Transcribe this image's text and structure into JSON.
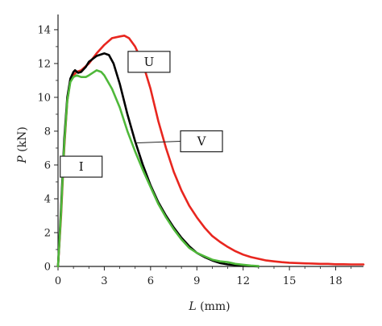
{
  "chart_data": {
    "type": "line",
    "xlabel_var": "L",
    "xlabel_unit": " (mm)",
    "ylabel_var": "P",
    "ylabel_unit": " (kN)",
    "xlim": [
      0,
      19.8
    ],
    "ylim": [
      0,
      14.9
    ],
    "xticks": [
      0,
      3,
      6,
      9,
      12,
      15,
      18
    ],
    "yticks": [
      0,
      2,
      4,
      6,
      8,
      10,
      12,
      14
    ],
    "grid": false,
    "legend": "none",
    "series": [
      {
        "color": "#e8261f",
        "x": [
          0,
          0.2,
          0.4,
          0.6,
          0.8,
          1.0,
          1.2,
          1.5,
          2.0,
          2.5,
          3.0,
          3.5,
          4.0,
          4.3,
          4.6,
          5.0,
          5.5,
          6.0,
          6.5,
          7.0,
          7.5,
          8.0,
          8.5,
          9.0,
          9.5,
          10.0,
          10.5,
          11.0,
          11.5,
          12.0,
          12.5,
          13.0,
          13.5,
          14.0,
          14.5,
          15.0,
          15.5,
          16.0,
          16.5,
          17.0,
          17.5,
          18.0,
          18.5,
          19.0,
          19.5,
          19.8
        ],
        "y": [
          0,
          3.0,
          7.0,
          9.8,
          11.0,
          11.3,
          11.5,
          11.6,
          12.0,
          12.6,
          13.1,
          13.5,
          13.6,
          13.65,
          13.5,
          13.0,
          12.0,
          10.5,
          8.6,
          7.0,
          5.6,
          4.5,
          3.6,
          2.9,
          2.3,
          1.8,
          1.45,
          1.15,
          0.9,
          0.7,
          0.55,
          0.45,
          0.35,
          0.3,
          0.25,
          0.22,
          0.2,
          0.18,
          0.17,
          0.15,
          0.15,
          0.13,
          0.13,
          0.12,
          0.12,
          0.12
        ]
      },
      {
        "color": "#000000",
        "x": [
          0,
          0.2,
          0.4,
          0.6,
          0.8,
          1.0,
          1.1,
          1.3,
          1.5,
          1.8,
          2.0,
          2.5,
          3.0,
          3.3,
          3.6,
          4.0,
          4.5,
          5.0,
          5.5,
          6.0,
          6.5,
          7.0,
          7.5,
          8.0,
          8.5,
          9.0,
          9.5,
          10.0,
          10.5,
          11.0,
          11.5,
          12.0,
          12.5,
          13.0
        ],
        "y": [
          0,
          3.5,
          7.5,
          10.0,
          11.1,
          11.5,
          11.6,
          11.45,
          11.5,
          11.8,
          12.1,
          12.45,
          12.6,
          12.5,
          12.0,
          10.8,
          9.0,
          7.4,
          6.0,
          4.8,
          3.8,
          3.0,
          2.3,
          1.7,
          1.2,
          0.8,
          0.55,
          0.35,
          0.2,
          0.12,
          0.08,
          0.04,
          0.02,
          0
        ]
      },
      {
        "color": "#4fb83a",
        "x": [
          0,
          0.2,
          0.4,
          0.6,
          0.8,
          1.0,
          1.2,
          1.5,
          1.8,
          2.0,
          2.5,
          2.8,
          3.0,
          3.5,
          4.0,
          4.5,
          5.0,
          5.5,
          6.0,
          6.5,
          7.0,
          7.5,
          8.0,
          8.5,
          9.0,
          9.5,
          10.0,
          10.5,
          11.0,
          11.5,
          12.0,
          12.5,
          13.0
        ],
        "y": [
          0,
          3.2,
          7.2,
          9.8,
          10.9,
          11.2,
          11.3,
          11.2,
          11.2,
          11.3,
          11.6,
          11.5,
          11.3,
          10.5,
          9.4,
          8.0,
          6.8,
          5.7,
          4.7,
          3.7,
          2.9,
          2.2,
          1.6,
          1.1,
          0.8,
          0.6,
          0.4,
          0.3,
          0.25,
          0.15,
          0.1,
          0.05,
          0.02
        ]
      }
    ],
    "annotations": [
      {
        "label": "U",
        "x": 5.9,
        "y": 12.1,
        "leader": false
      },
      {
        "label": "V",
        "x": 9.3,
        "y": 7.4,
        "leader": true,
        "target_x": 5.0,
        "target_y": 7.3
      },
      {
        "label": "I",
        "x": 1.5,
        "y": 5.9,
        "leader": false
      }
    ]
  }
}
